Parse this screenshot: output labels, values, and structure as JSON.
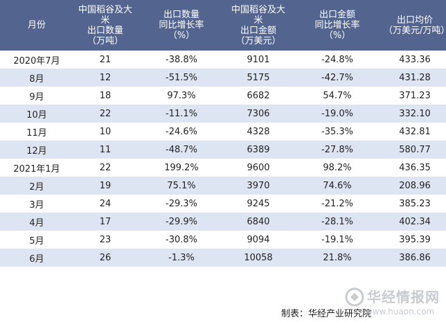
{
  "table": {
    "headers": [
      "月份",
      "中国稻谷及大\n米\n出口数量\n（万吨）",
      "出口数量\n同比增长率\n（%）",
      "中国稻谷及大\n米\n出口金额\n（万美元）",
      "出口金额\n同比增长率\n（%）",
      "出口均价\n（万美元/万吨）"
    ],
    "rows": [
      {
        "month": "2020年7月",
        "qty": "21",
        "qty_yoy": "-38.8%",
        "value": "9101",
        "value_yoy": "-24.8%",
        "price": "433.36"
      },
      {
        "month": "8月",
        "qty": "12",
        "qty_yoy": "-51.5%",
        "value": "5175",
        "value_yoy": "-42.7%",
        "price": "431.28"
      },
      {
        "month": "9月",
        "qty": "18",
        "qty_yoy": "97.3%",
        "value": "6682",
        "value_yoy": "54.7%",
        "price": "371.23"
      },
      {
        "month": "10月",
        "qty": "22",
        "qty_yoy": "-11.1%",
        "value": "7306",
        "value_yoy": "-19.0%",
        "price": "332.10"
      },
      {
        "month": "11月",
        "qty": "10",
        "qty_yoy": "-24.6%",
        "value": "4328",
        "value_yoy": "-35.3%",
        "price": "432.81"
      },
      {
        "month": "12月",
        "qty": "11",
        "qty_yoy": "-48.7%",
        "value": "6389",
        "value_yoy": "-27.8%",
        "price": "580.77"
      },
      {
        "month": "2021年1月",
        "qty": "22",
        "qty_yoy": "199.2%",
        "value": "9600",
        "value_yoy": "98.2%",
        "price": "436.35"
      },
      {
        "month": "2月",
        "qty": "19",
        "qty_yoy": "75.1%",
        "value": "3970",
        "value_yoy": "74.6%",
        "price": "208.96"
      },
      {
        "month": "3月",
        "qty": "24",
        "qty_yoy": "-29.3%",
        "value": "9245",
        "value_yoy": "-21.2%",
        "price": "385.23"
      },
      {
        "month": "4月",
        "qty": "17",
        "qty_yoy": "-29.9%",
        "value": "6840",
        "value_yoy": "-28.1%",
        "price": "402.34"
      },
      {
        "month": "5月",
        "qty": "23",
        "qty_yoy": "-30.8%",
        "value": "9094",
        "value_yoy": "-19.1%",
        "price": "395.39"
      },
      {
        "month": "6月",
        "qty": "26",
        "qty_yoy": "-1.3%",
        "value": "10058",
        "value_yoy": "21.8%",
        "price": "386.86"
      }
    ]
  },
  "footer": {
    "source": "制表：华经产业研究院"
  },
  "watermark": {
    "name": "华经情报网",
    "url": "www.huaon.com"
  },
  "colors": {
    "header_bg": "#53648f",
    "stripe_bg": "#dde4f2",
    "negative_text": "#2aa9a0"
  }
}
